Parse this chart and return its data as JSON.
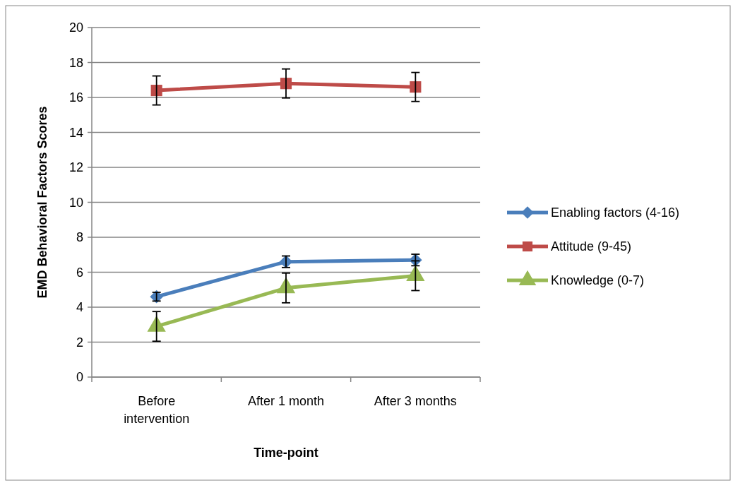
{
  "chart_data": {
    "type": "line",
    "xlabel": "Time-point",
    "ylabel": "EMD Behavioral Factors Scores",
    "categories": [
      "Before\nintervention",
      "After 1 month",
      "After 3 months"
    ],
    "series": [
      {
        "name": "Enabling factors (4-16)",
        "color": "#4a7ebb",
        "values": [
          4.6,
          6.6,
          6.7
        ],
        "errors": [
          0.25,
          0.33,
          0.33
        ],
        "marker": "diamond"
      },
      {
        "name": "Attitude (9-45)",
        "color": "#be4b48",
        "values": [
          16.4,
          16.8,
          16.6
        ],
        "errors": [
          0.83,
          0.83,
          0.83
        ],
        "marker": "square"
      },
      {
        "name": "Knowledge (0-7)",
        "color": "#98b954",
        "values": [
          2.9,
          5.1,
          5.8
        ],
        "errors": [
          0.85,
          0.85,
          0.85
        ],
        "marker": "triangle"
      }
    ],
    "ylim": [
      0,
      20
    ],
    "yticks": [
      0,
      2,
      4,
      6,
      8,
      10,
      12,
      14,
      16,
      18,
      20
    ],
    "grid": "y",
    "legend": "right"
  }
}
